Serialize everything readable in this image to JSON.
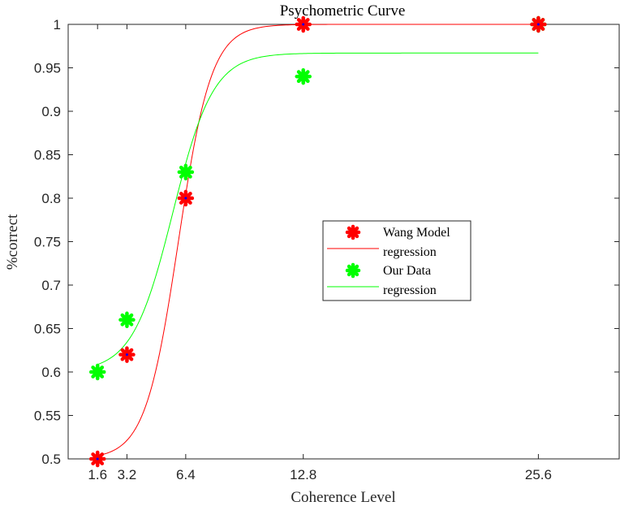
{
  "chart_data": {
    "type": "scatter",
    "title": "Psychometric Curve",
    "xlabel": "Coherence Level",
    "ylabel": "%correct",
    "xlim": [
      0,
      30
    ],
    "ylim": [
      0.5,
      1
    ],
    "xticks": [
      1.6,
      3.2,
      6.4,
      12.8,
      25.6
    ],
    "xtick_labels": [
      "1.6",
      "3.2",
      "6.4",
      "12.8",
      "25.6"
    ],
    "yticks": [
      0.5,
      0.55,
      0.6,
      0.65,
      0.7,
      0.75,
      0.8,
      0.85,
      0.9,
      0.95,
      1
    ],
    "ytick_labels": [
      "0.5",
      "0.55",
      "0.6",
      "0.65",
      "0.7",
      "0.75",
      "0.8",
      "0.85",
      "0.9",
      "0.95",
      "1"
    ],
    "grid": false,
    "legend_position": "right",
    "series": [
      {
        "name": "Wang Model",
        "kind": "markers",
        "marker": "asterisk",
        "color": "#ff0000",
        "x": [
          1.6,
          3.2,
          6.4,
          12.8,
          25.6
        ],
        "y": [
          0.5,
          0.62,
          0.8,
          1.0,
          1.0
        ]
      },
      {
        "name": "regression",
        "kind": "line",
        "color": "#ff0000",
        "model": {
          "base": 0.5,
          "top": 1.0,
          "midpoint": 6.0,
          "scale": 0.9
        },
        "x_range": [
          1.6,
          25.6
        ]
      },
      {
        "name": "Our Data",
        "kind": "markers",
        "marker": "asterisk",
        "color": "#00ff00",
        "x": [
          1.6,
          3.2,
          6.4,
          12.8,
          25.6
        ],
        "y": [
          0.6,
          0.66,
          0.83,
          0.94,
          1.0
        ]
      },
      {
        "name": "regression",
        "kind": "line",
        "color": "#00ff00",
        "model": {
          "base": 0.6,
          "top": 0.967,
          "midpoint": 5.7,
          "scale": 1.1
        },
        "x_range": [
          1.6,
          25.6
        ]
      }
    ]
  }
}
